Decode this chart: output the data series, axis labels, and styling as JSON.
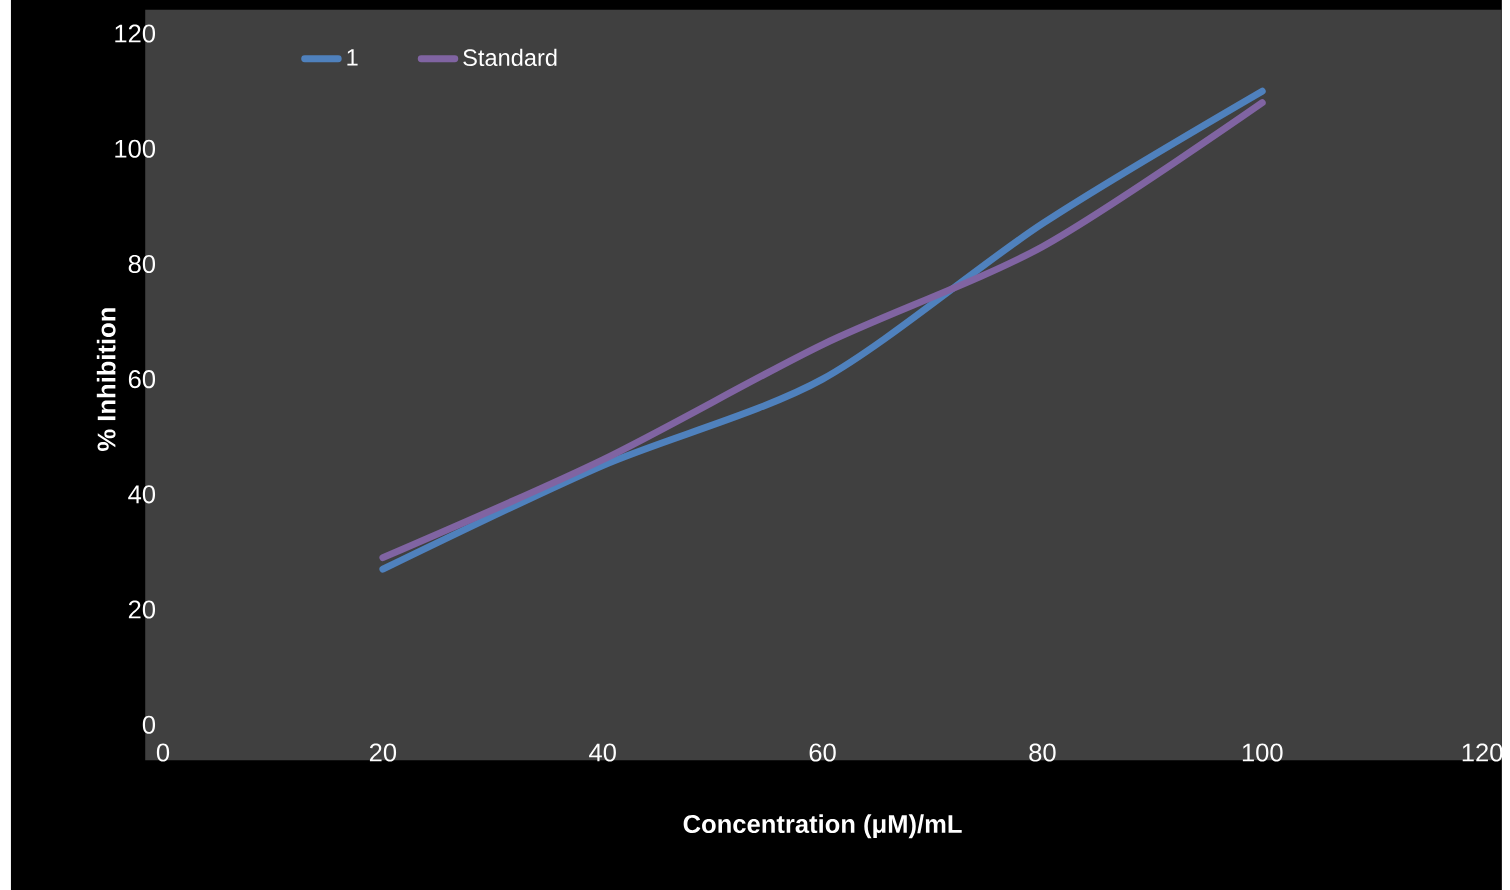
{
  "chart_data": {
    "type": "line",
    "xlabel": "Concentration (μM)/mL",
    "ylabel": "% Inhibition",
    "x": [
      20,
      40,
      60,
      80,
      100
    ],
    "series": [
      {
        "name": "1",
        "color": "#4f81bd",
        "values": [
          27,
          45,
          60,
          87,
          110
        ]
      },
      {
        "name": "Standard",
        "color": "#8064a2",
        "values": [
          29,
          46,
          66,
          83,
          108
        ]
      }
    ],
    "xlim": [
      0,
      120
    ],
    "xticks": [
      0,
      20,
      40,
      60,
      80,
      100,
      120
    ],
    "ylim": [
      0,
      120
    ],
    "yticks": [
      0,
      20,
      40,
      60,
      80,
      100,
      120
    ],
    "legend": "top left",
    "marker": "none",
    "line_style": "solid",
    "grid": false
  }
}
